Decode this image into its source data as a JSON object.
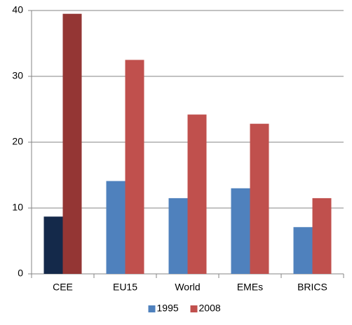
{
  "chart_data": {
    "type": "bar",
    "categories": [
      "CEE",
      "EU15",
      "World",
      "EMEs",
      "BRICS"
    ],
    "series": [
      {
        "name": "1995",
        "color": "#4f81bd",
        "colors": [
          "#14294a",
          "#4f81bd",
          "#4f81bd",
          "#4f81bd",
          "#4f81bd"
        ],
        "values": [
          8.7,
          14.1,
          11.5,
          13.0,
          7.1
        ]
      },
      {
        "name": "2008",
        "color": "#c0504d",
        "colors": [
          "#943634",
          "#c0504d",
          "#c0504d",
          "#c0504d",
          "#c0504d"
        ],
        "values": [
          39.5,
          32.5,
          24.2,
          22.8,
          11.5
        ]
      }
    ],
    "ylim": [
      0,
      40
    ],
    "yticks": [
      0,
      10,
      20,
      30,
      40
    ],
    "grid": true,
    "legend": "bottom"
  }
}
